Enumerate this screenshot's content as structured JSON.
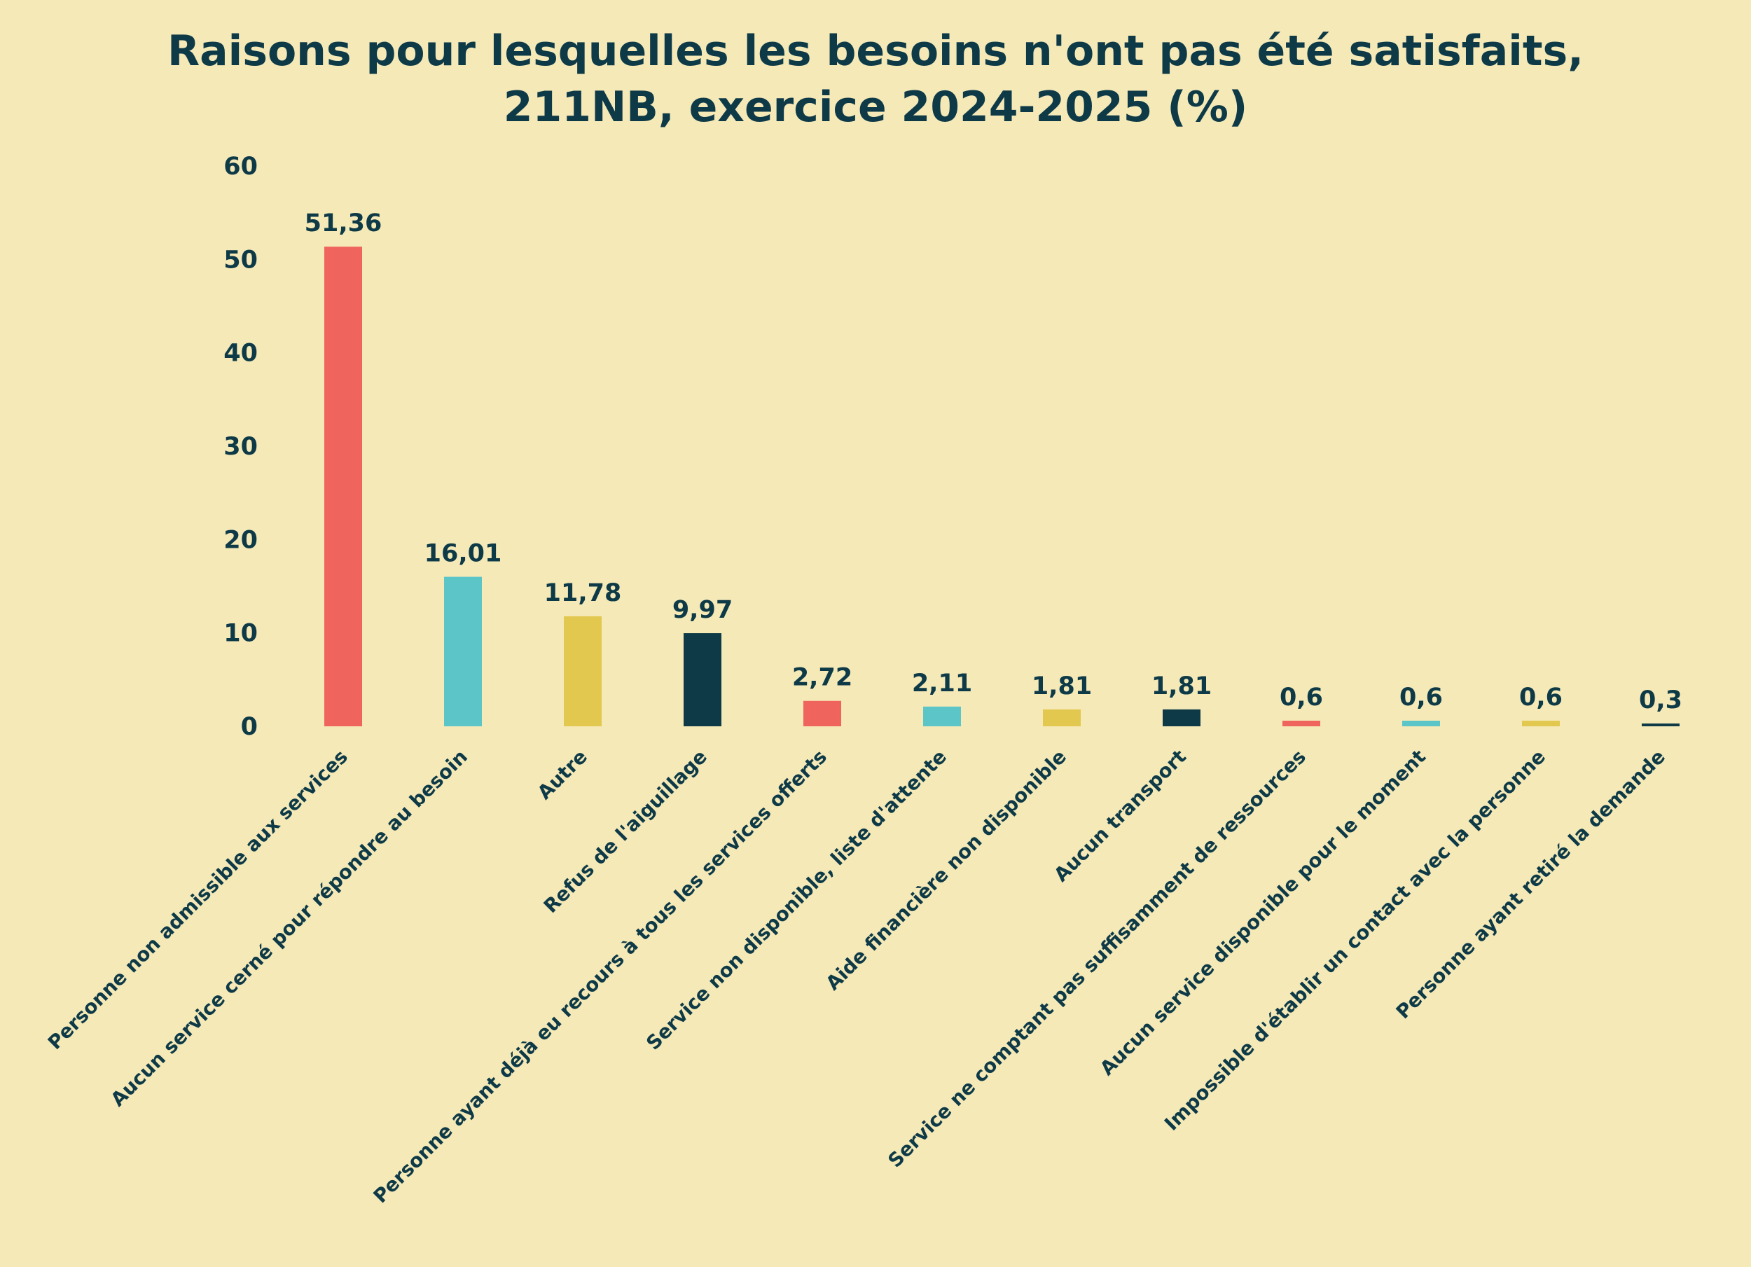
{
  "chart_data": {
    "type": "bar",
    "title": "Raisons pour lesquelles les besoins n'ont pas été satisfaits,",
    "subtitle": "211NB, exercice 2024-2025 (%)",
    "xlabel": "",
    "ylabel": "",
    "ylim": [
      0,
      60
    ],
    "yticks": [
      "0",
      "10",
      "20",
      "30",
      "40",
      "50",
      "60"
    ],
    "grid": false,
    "categories": [
      "Personne non admissible aux services",
      "Aucun service cerné pour répondre au besoin",
      "Autre",
      "Refus de l'aiguillage",
      "Personne ayant déjà eu recours à tous les services offerts",
      "Service non disponible, liste d'attente",
      "Aide financière non disponible",
      "Aucun transport",
      "Service ne comptant pas suffisamment de ressources",
      "Aucun service disponible pour le moment",
      "Impossible d'établir un contact avec la personne",
      "Personne ayant retiré la demande"
    ],
    "values": [
      51.36,
      16.01,
      11.78,
      9.97,
      2.72,
      2.11,
      1.81,
      1.81,
      0.6,
      0.6,
      0.6,
      0.3
    ],
    "value_labels": [
      "51,36",
      "16,01",
      "11,78",
      "9,97",
      "2,72",
      "2,11",
      "1,81",
      "1,81",
      "0,6",
      "0,6",
      "0,6",
      "0,3"
    ],
    "colors": [
      "#f0645e",
      "#5bc5c8",
      "#e2c84f",
      "#0e3a47",
      "#f0645e",
      "#5bc5c8",
      "#e2c84f",
      "#0e3a47",
      "#f0645e",
      "#5bc5c8",
      "#e2c84f",
      "#0e3a47"
    ]
  }
}
